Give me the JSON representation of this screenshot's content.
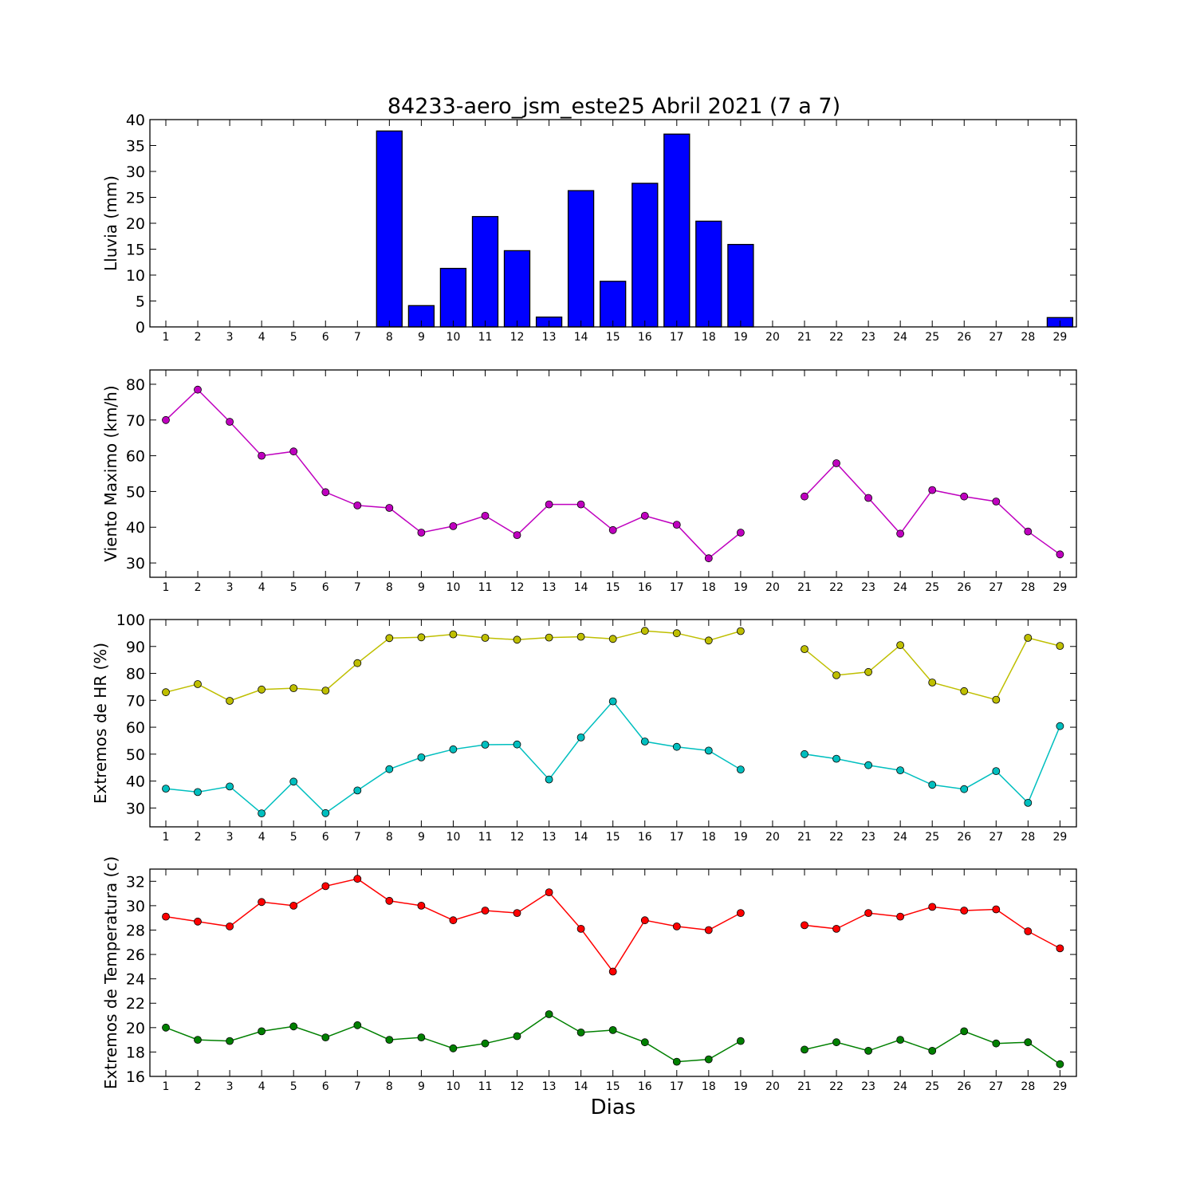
{
  "figure": {
    "title": "84233-aero_jsm_este25 Abril 2021  (7 a 7)",
    "xlabel": "Dias"
  },
  "chart_data": [
    {
      "type": "bar",
      "ylabel": "Lluvia (mm)",
      "ylim": [
        0,
        40
      ],
      "yticks": [
        0,
        5,
        10,
        15,
        20,
        25,
        30,
        35,
        40
      ],
      "x": [
        1,
        2,
        3,
        4,
        5,
        6,
        7,
        8,
        9,
        10,
        11,
        12,
        13,
        14,
        15,
        16,
        17,
        18,
        19,
        20,
        21,
        22,
        23,
        24,
        25,
        26,
        27,
        28,
        29
      ],
      "values": [
        0,
        0,
        0,
        0,
        0,
        0,
        0,
        37.8,
        4.1,
        11.3,
        21.3,
        14.7,
        1.9,
        26.3,
        8.8,
        27.7,
        37.2,
        20.4,
        15.9,
        0,
        0,
        0,
        0,
        0,
        0,
        0,
        0,
        0,
        1.8
      ],
      "color": "#0000ff"
    },
    {
      "type": "line",
      "ylabel": "Viento Maximo (km/h)",
      "ylim": [
        26,
        84
      ],
      "yticks": [
        30,
        40,
        50,
        60,
        70,
        80
      ],
      "x": [
        1,
        2,
        3,
        4,
        5,
        6,
        7,
        8,
        9,
        10,
        11,
        12,
        13,
        14,
        15,
        16,
        17,
        18,
        19,
        20,
        21,
        22,
        23,
        24,
        25,
        26,
        27,
        28,
        29
      ],
      "series": [
        {
          "color": "#bf00bf",
          "values": [
            70,
            78.5,
            69.5,
            60,
            61.2,
            49.8,
            46.1,
            45.4,
            38.5,
            40.3,
            43.2,
            37.8,
            46.4,
            46.4,
            39.2,
            43.2,
            40.7,
            31.3,
            38.5,
            null,
            48.6,
            57.9,
            48.2,
            38.2,
            50.4,
            48.6,
            47.2,
            38.8,
            32.4
          ]
        }
      ]
    },
    {
      "type": "line",
      "ylabel": "Extremos de HR (%)",
      "ylim": [
        23,
        100
      ],
      "yticks": [
        30,
        40,
        50,
        60,
        70,
        80,
        90,
        100
      ],
      "x": [
        1,
        2,
        3,
        4,
        5,
        6,
        7,
        8,
        9,
        10,
        11,
        12,
        13,
        14,
        15,
        16,
        17,
        18,
        19,
        20,
        21,
        22,
        23,
        24,
        25,
        26,
        27,
        28,
        29
      ],
      "series": [
        {
          "color": "#bfbf00",
          "values": [
            73,
            76,
            69.8,
            74,
            74.5,
            73.6,
            83.8,
            93.1,
            93.4,
            94.5,
            93.2,
            92.5,
            93.3,
            93.6,
            92.8,
            95.8,
            94.9,
            92.2,
            95.7,
            null,
            89,
            79.3,
            80.5,
            90.5,
            76.6,
            73.4,
            70.2,
            93.2,
            90.2
          ]
        },
        {
          "color": "#00bfbf",
          "values": [
            37.2,
            35.9,
            38,
            28,
            39.8,
            28.1,
            36.5,
            44.4,
            48.8,
            51.8,
            53.5,
            53.6,
            40.6,
            56.2,
            69.6,
            54.7,
            52.7,
            51.3,
            44.3,
            null,
            50,
            48.3,
            45.9,
            44,
            38.6,
            37,
            43.7,
            31.9,
            60.4
          ]
        }
      ]
    },
    {
      "type": "line",
      "ylabel": "Extremos de Temperatura (c)",
      "ylim": [
        16,
        33
      ],
      "yticks": [
        16,
        18,
        20,
        22,
        24,
        26,
        28,
        30,
        32
      ],
      "x": [
        1,
        2,
        3,
        4,
        5,
        6,
        7,
        8,
        9,
        10,
        11,
        12,
        13,
        14,
        15,
        16,
        17,
        18,
        19,
        20,
        21,
        22,
        23,
        24,
        25,
        26,
        27,
        28,
        29
      ],
      "series": [
        {
          "color": "#ff0000",
          "values": [
            29.1,
            28.7,
            28.3,
            30.3,
            30,
            31.6,
            32.2,
            30.4,
            30,
            28.8,
            29.6,
            29.4,
            31.1,
            28.1,
            24.6,
            28.8,
            28.3,
            28,
            29.4,
            null,
            28.4,
            28.1,
            29.4,
            29.1,
            29.9,
            29.6,
            29.7,
            27.9,
            26.5
          ]
        },
        {
          "color": "#008000",
          "values": [
            20,
            19,
            18.9,
            19.7,
            20.1,
            19.2,
            20.2,
            19,
            19.2,
            18.3,
            18.7,
            19.3,
            21.1,
            19.6,
            19.8,
            18.8,
            17.2,
            17.4,
            18.9,
            null,
            18.2,
            18.8,
            18.1,
            19,
            18.1,
            19.7,
            18.7,
            18.8,
            17
          ]
        }
      ]
    }
  ]
}
